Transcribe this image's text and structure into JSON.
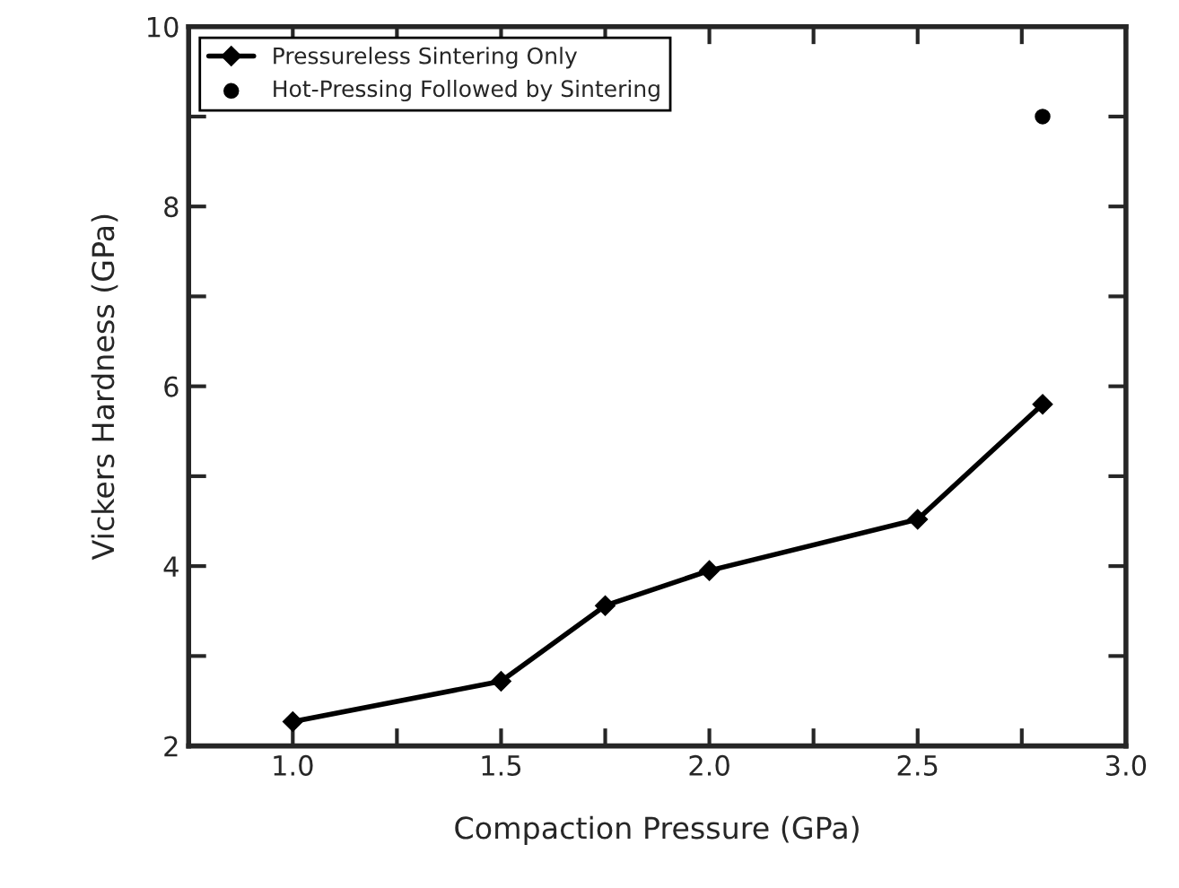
{
  "chart_data": {
    "type": "line",
    "xlabel": "Compaction Pressure (GPa)",
    "ylabel": "Vickers Hardness (GPa)",
    "xlim": [
      0.75,
      3.0
    ],
    "ylim": [
      2,
      10
    ],
    "xticks": [
      {
        "value": 1.0,
        "label": "1.0"
      },
      {
        "value": 1.25,
        "label": null
      },
      {
        "value": 1.5,
        "label": "1.5"
      },
      {
        "value": 1.75,
        "label": null
      },
      {
        "value": 2.0,
        "label": "2.0"
      },
      {
        "value": 2.25,
        "label": null
      },
      {
        "value": 2.5,
        "label": "2.5"
      },
      {
        "value": 2.75,
        "label": null
      },
      {
        "value": 3.0,
        "label": "3.0"
      }
    ],
    "yticks": [
      2,
      {
        "value": 3,
        "label": null
      },
      4,
      {
        "value": 5,
        "label": null
      },
      6,
      {
        "value": 7,
        "label": null
      },
      8,
      {
        "value": 9,
        "label": null
      },
      10
    ],
    "grid": false,
    "legend": "top left",
    "series": [
      {
        "name": "Pressureless Sintering Only",
        "marker": "diamond",
        "color": "#000000",
        "x": [
          1.0,
          1.5,
          1.75,
          2.0,
          2.5,
          2.8
        ],
        "values": [
          2.27,
          2.72,
          3.56,
          3.95,
          4.52,
          5.8
        ]
      },
      {
        "name": "Hot-Pressing Followed by Sintering",
        "type": "scatter",
        "marker": "circle",
        "color": "#000000",
        "x": [
          2.8
        ],
        "values": [
          9.0
        ]
      }
    ]
  }
}
